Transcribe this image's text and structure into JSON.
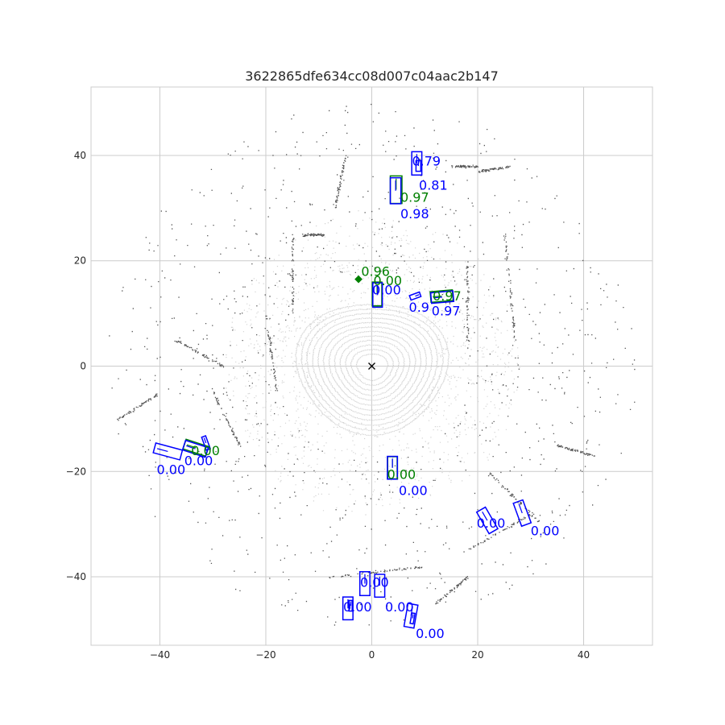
{
  "chart_data": {
    "type": "scatter",
    "title": "3622865dfe634cc08d007c04aac2b147",
    "xlabel": "",
    "ylabel": "",
    "xlim": [
      -53,
      53
    ],
    "ylim": [
      -53,
      53
    ],
    "xticks": [
      -40,
      -20,
      0,
      20,
      40
    ],
    "yticks": [
      -40,
      -20,
      0,
      20,
      40
    ],
    "xtick_labels": [
      "−40",
      "−20",
      "0",
      "20",
      "40"
    ],
    "ytick_labels": [
      "−40",
      "−20",
      "0",
      "20",
      "40"
    ],
    "grid": true,
    "ego": {
      "x": 0,
      "y": 0,
      "marker": "x"
    },
    "colors": {
      "prediction": "#0000ff",
      "ground_truth": "#008000",
      "points_near": "#d3d3d3",
      "points_far": "#555555",
      "grid": "#cccccc"
    },
    "boxes": [
      {
        "set": "prediction",
        "x": 8.5,
        "y": 38.5,
        "w": 1.9,
        "l": 4.4,
        "yaw": 0,
        "score_label": "0.79",
        "lx": 7.6,
        "ly": 38.1
      },
      {
        "set": "prediction",
        "x": 8.8,
        "y": 38.0,
        "w": 0.9,
        "l": 2.0,
        "yaw": 0,
        "score_label": "0.81",
        "lx": 8.9,
        "ly": 33.5
      },
      {
        "set": "ground_truth",
        "x": 4.6,
        "y": 33.5,
        "w": 2.2,
        "l": 5.2,
        "yaw": 0,
        "score_label": "0.97",
        "lx": 5.4,
        "ly": 31.2
      },
      {
        "set": "prediction",
        "x": 4.5,
        "y": 33.3,
        "w": 2.0,
        "l": 4.9,
        "yaw": 0,
        "score_label": "0.98",
        "lx": 5.4,
        "ly": 28.1
      },
      {
        "set": "ground_truth",
        "x": -2.5,
        "y": 16.5,
        "w": 0.9,
        "l": 0.9,
        "yaw": 0,
        "filled": true,
        "score_label": "0.96",
        "lx": -2.0,
        "ly": 17.1
      },
      {
        "set": "ground_truth",
        "x": 1.0,
        "y": 13.7,
        "w": 1.8,
        "l": 4.5,
        "yaw": 0,
        "score_label": "0.00",
        "lx": 0.3,
        "ly": 15.4
      },
      {
        "set": "prediction",
        "x": 1.1,
        "y": 13.5,
        "w": 1.8,
        "l": 4.6,
        "yaw": 0,
        "score_label": "0.00",
        "lx": 0.1,
        "ly": 13.6
      },
      {
        "set": "prediction",
        "x": 8.2,
        "y": 13.3,
        "w": 0.9,
        "l": 2.0,
        "yaw": -70,
        "score_label": "0.9",
        "lx": 7.0,
        "ly": 10.3
      },
      {
        "set": "ground_truth",
        "x": 13.2,
        "y": 13.3,
        "w": 2.0,
        "l": 4.2,
        "yaw": 95,
        "score_label": "0.97",
        "lx": 11.5,
        "ly": 12.5
      },
      {
        "set": "prediction",
        "x": 13.3,
        "y": 13.1,
        "w": 2.0,
        "l": 4.2,
        "yaw": 95,
        "score_label": "0.97",
        "lx": 11.3,
        "ly": 9.6
      },
      {
        "set": "prediction",
        "x": -38.5,
        "y": -16.2,
        "w": 1.9,
        "l": 5.2,
        "yaw": 75,
        "score_label": "0.00",
        "lx": -40.6,
        "ly": -20.5
      },
      {
        "set": "ground_truth",
        "x": -33.2,
        "y": -15.5,
        "w": 1.9,
        "l": 4.5,
        "yaw": 72,
        "score_label": "0.00",
        "lx": -34.1,
        "ly": -16.9
      },
      {
        "set": "prediction",
        "x": -33.3,
        "y": -15.7,
        "w": 1.9,
        "l": 4.5,
        "yaw": 72,
        "score_label": "0.00",
        "lx": -35.4,
        "ly": -18.8
      },
      {
        "set": "prediction",
        "x": -31.3,
        "y": -14.6,
        "w": 0.8,
        "l": 2.6,
        "yaw": 20,
        "score_label": "",
        "lx": 0,
        "ly": 0
      },
      {
        "set": "ground_truth",
        "x": 3.9,
        "y": -19.3,
        "w": 1.8,
        "l": 4.2,
        "yaw": 0,
        "score_label": "0.00",
        "lx": 2.9,
        "ly": -21.4
      },
      {
        "set": "prediction",
        "x": 3.9,
        "y": -19.3,
        "w": 1.9,
        "l": 4.3,
        "yaw": 0,
        "score_label": "0.00",
        "lx": 5.1,
        "ly": -24.5
      },
      {
        "set": "prediction",
        "x": 21.8,
        "y": -29.3,
        "w": 1.9,
        "l": 4.7,
        "yaw": 30,
        "score_label": "0.00",
        "lx": 19.8,
        "ly": -30.7
      },
      {
        "set": "prediction",
        "x": 28.4,
        "y": -27.9,
        "w": 1.9,
        "l": 4.6,
        "yaw": 20,
        "score_label": "0.00",
        "lx": 30.0,
        "ly": -32.1
      },
      {
        "set": "prediction",
        "x": -1.3,
        "y": -41.3,
        "w": 1.9,
        "l": 4.5,
        "yaw": 0,
        "score_label": "0.00",
        "lx": -2.2,
        "ly": -41.9
      },
      {
        "set": "prediction",
        "x": 1.5,
        "y": -41.7,
        "w": 1.9,
        "l": 4.3,
        "yaw": 0,
        "score_label": "",
        "lx": 0,
        "ly": 0
      },
      {
        "set": "prediction",
        "x": -4.5,
        "y": -46.0,
        "w": 1.9,
        "l": 4.3,
        "yaw": 0,
        "score_label": "0.00",
        "lx": -5.4,
        "ly": -46.6
      },
      {
        "set": "prediction",
        "x": 7.4,
        "y": -47.4,
        "w": 1.9,
        "l": 4.4,
        "yaw": -10,
        "score_label": "0.00",
        "lx": 2.5,
        "ly": -46.6
      },
      {
        "set": "prediction",
        "x": 7.7,
        "y": -47.9,
        "w": 0.6,
        "l": 2.0,
        "yaw": -10,
        "score_label": "",
        "lx": 0,
        "ly": 0
      },
      {
        "set": "prediction",
        "x": -4.0,
        "y": -45.5,
        "w": 0.6,
        "l": 2.0,
        "yaw": 0,
        "score_label": "",
        "lx": 0,
        "ly": 0
      }
    ],
    "extra_labels": [
      {
        "set": "prediction",
        "label": "0.00",
        "lx": 8.3,
        "ly": -51.6
      }
    ]
  }
}
